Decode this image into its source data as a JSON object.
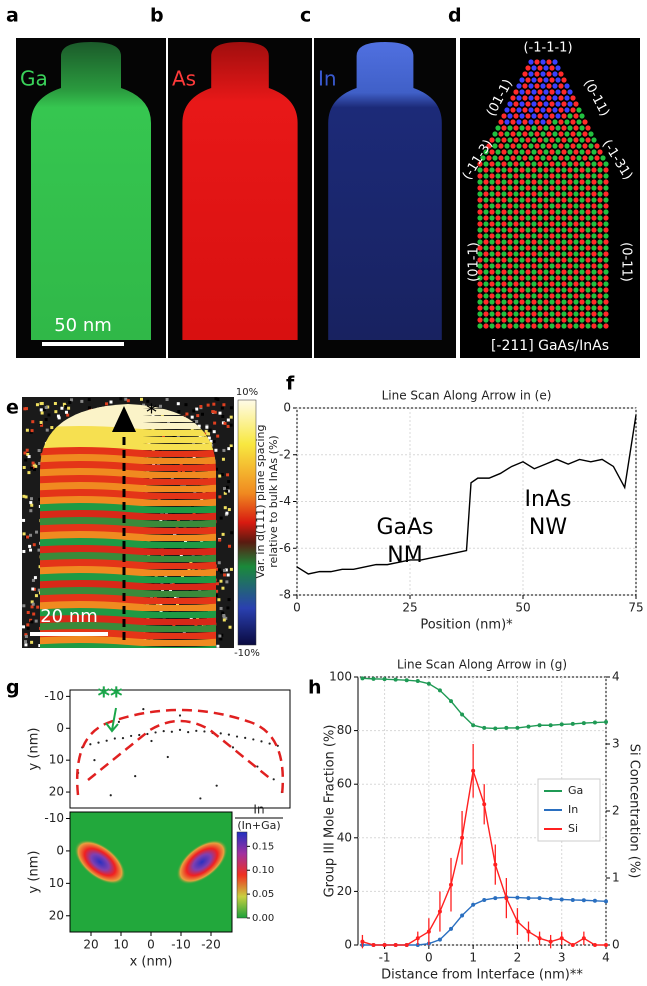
{
  "panel_labels": [
    "a",
    "b",
    "c",
    "d",
    "e",
    "f",
    "g",
    "h"
  ],
  "images": {
    "a_label": "Ga",
    "b_label": "As",
    "c_label": "In",
    "scale_bar_a": "50 nm",
    "d_facets": [
      "(-1-1-1)",
      "(01-1)",
      "(0-11)",
      "(-11-3)",
      "(-1-31)",
      "(01-1)",
      "(0-11)"
    ],
    "d_caption": "[-211] GaAs/InAs",
    "e_scale_bar": "20 nm",
    "e_marker": "*",
    "e_colorbar": {
      "clim": [
        -10,
        10
      ],
      "ticks": [
        {
          "value": 10,
          "label": "10%"
        },
        {
          "value": -10,
          "label": "-10%"
        }
      ]
    }
  },
  "chart_data": [
    {
      "type": "line",
      "title": "Line Scan Along Arrow in (e)",
      "x": [
        0,
        2.5,
        5,
        7.5,
        10,
        12.5,
        15,
        17.5,
        20,
        22.5,
        25,
        27.5,
        30,
        32.5,
        35,
        37.5,
        38.5,
        40,
        42.5,
        45,
        47.5,
        50,
        52.5,
        55,
        57.5,
        60,
        62.5,
        65,
        67.5,
        70,
        72.5,
        75
      ],
      "values": [
        -6.8,
        -7.1,
        -7.0,
        -7.0,
        -6.9,
        -6.9,
        -6.8,
        -6.7,
        -6.7,
        -6.6,
        -6.5,
        -6.5,
        -6.4,
        -6.3,
        -6.2,
        -6.1,
        -3.2,
        -3.0,
        -3.0,
        -2.8,
        -2.5,
        -2.3,
        -2.6,
        -2.4,
        -2.2,
        -2.4,
        -2.2,
        -2.3,
        -2.2,
        -2.5,
        -3.4,
        -0.3
      ],
      "color": "#000000",
      "xlim": [
        0,
        75
      ],
      "ylim": [
        -8,
        0
      ],
      "xticks": [
        0,
        25,
        50,
        75
      ],
      "yticks": [
        0,
        -2,
        -4,
        -6,
        -8
      ],
      "grid": true,
      "xlabel": "Position (nm)*",
      "ylabel": [
        "Var. in d(111) plane spacing",
        "relative to bulk InAs (%)"
      ],
      "annotations": [
        "GaAs",
        "NM",
        "InAs",
        "NW"
      ]
    },
    {
      "type": "scatter",
      "color": "#222222",
      "x": [
        -24,
        -22,
        -20,
        -18,
        -16,
        -14,
        -12,
        -10,
        -8,
        -6,
        -4,
        -2,
        0,
        2,
        4,
        6,
        8,
        10,
        12,
        14,
        16,
        18,
        20,
        22,
        24,
        -19,
        -9,
        3,
        11,
        17,
        -13,
        7,
        -23,
        21,
        0,
        -5,
        15,
        -25,
        25,
        9
      ],
      "y": [
        5.5,
        4.8,
        4.1,
        3.5,
        3.0,
        2.6,
        2.0,
        1.6,
        1.5,
        1.0,
        0.8,
        1.2,
        0.5,
        1.1,
        0.9,
        1.3,
        1.8,
        2.1,
        2.4,
        3.1,
        3.2,
        3.9,
        4.5,
        5.0,
        6.0,
        12,
        18,
        9,
        15,
        21,
        6,
        4,
        16,
        10,
        -4,
        22,
        -2,
        20,
        14,
        -6
      ],
      "xlim": [
        27,
        -27
      ],
      "ylim": [
        25,
        -12
      ],
      "yticks": [
        -10,
        0,
        10,
        20
      ],
      "ylabel": "y (nm)",
      "annotation": "**",
      "annotation_color": "#1aa64a"
    },
    {
      "type": "heatmap",
      "xlim": [
        27,
        -27
      ],
      "ylim": [
        25,
        -12
      ],
      "xticks": [
        20,
        10,
        0,
        -10,
        -20
      ],
      "yticks": [
        -10,
        0,
        10,
        20
      ],
      "xlabel": "x (nm)",
      "ylabel": "y (nm)",
      "colorbar": {
        "label": [
          "In",
          "(In+Ga)"
        ],
        "clim": [
          0,
          0.18
        ],
        "ticks": [
          {
            "value": 0,
            "label": "0.00"
          },
          {
            "value": 0.05,
            "label": "0.05"
          },
          {
            "value": 0.1,
            "label": "0.10"
          },
          {
            "value": 0.15,
            "label": "0.15"
          }
        ]
      }
    },
    {
      "type": "line",
      "title": "Line Scan Along Arrow in (g)",
      "x": [
        -1.5,
        -1.25,
        -1,
        -0.75,
        -0.5,
        -0.25,
        0,
        0.25,
        0.5,
        0.75,
        1,
        1.25,
        1.5,
        1.75,
        2,
        2.25,
        2.5,
        2.75,
        3,
        3.25,
        3.5,
        3.75,
        4
      ],
      "series": [
        {
          "name": "Ga",
          "color": "#1f9a55",
          "values": [
            99.5,
            99.3,
            99.2,
            99,
            98.8,
            98.5,
            97.5,
            95,
            91,
            86,
            82,
            81,
            80.8,
            81,
            81,
            81.5,
            82,
            82,
            82.3,
            82.5,
            82.8,
            83,
            83.2
          ]
        },
        {
          "name": "In",
          "color": "#2a6fc0",
          "values": [
            0,
            0,
            0,
            0,
            0,
            0,
            0.5,
            2,
            6,
            11,
            15,
            16.8,
            17.5,
            17.8,
            17.7,
            17.5,
            17.5,
            17.2,
            17,
            16.8,
            16.7,
            16.5,
            16.3
          ]
        },
        {
          "name": "Si",
          "color": "#ff2020",
          "axis": "y2",
          "values": [
            0.05,
            0,
            0,
            0,
            0,
            0.1,
            0.2,
            0.5,
            0.9,
            1.6,
            2.6,
            2.1,
            1.2,
            0.7,
            0.35,
            0.2,
            0.1,
            0.05,
            0.1,
            0,
            0.1,
            0,
            0
          ],
          "errors": [
            0.1,
            0,
            0,
            0,
            0,
            0.1,
            0.2,
            0.3,
            0.4,
            0.4,
            0.4,
            0.3,
            0.3,
            0.3,
            0.2,
            0.15,
            0.1,
            0.1,
            0.1,
            0,
            0.1,
            0,
            0
          ]
        }
      ],
      "xlim": [
        -1.6,
        4
      ],
      "ylim": [
        0,
        100
      ],
      "y2lim": [
        0,
        4
      ],
      "xticks": [
        -1,
        0,
        1,
        2,
        3,
        4
      ],
      "yticks": [
        0,
        20,
        40,
        60,
        80,
        100
      ],
      "y2ticks": [
        0,
        1,
        2,
        3,
        4
      ],
      "grid": true,
      "markers": true,
      "legend": "center right",
      "xlabel": "Distance from Interface (nm)**",
      "ylabel": "Group III Mole Fraction (%)",
      "y2label": "Si Concentration (%)"
    }
  ]
}
